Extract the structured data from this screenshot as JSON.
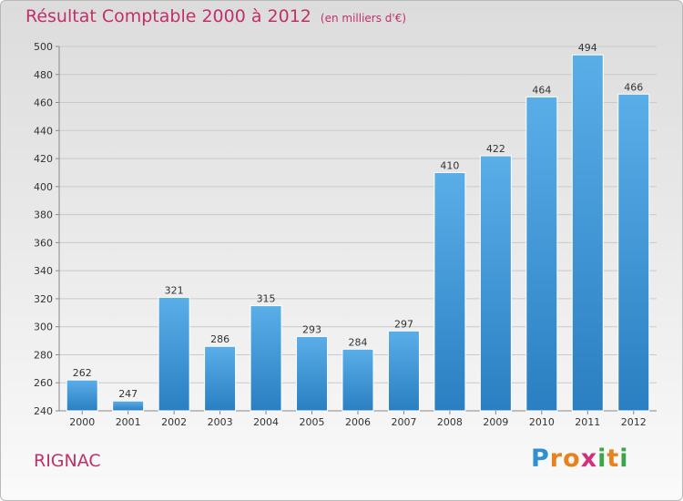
{
  "chart_data": {
    "type": "bar",
    "title": "Résultat Comptable 2000 à 2012",
    "subtitle": "(en milliers d'€)",
    "categories": [
      "2000",
      "2001",
      "2002",
      "2003",
      "2004",
      "2005",
      "2006",
      "2007",
      "2008",
      "2009",
      "2010",
      "2011",
      "2012"
    ],
    "values": [
      262,
      247,
      321,
      286,
      315,
      293,
      284,
      297,
      410,
      422,
      464,
      494,
      466
    ],
    "ylim": [
      240,
      500
    ],
    "yticks": [
      240,
      260,
      280,
      300,
      320,
      340,
      360,
      380,
      400,
      420,
      440,
      460,
      480,
      500
    ],
    "xlabel": "",
    "ylabel": "",
    "grid": true,
    "bar_color_top": "#5aaee8",
    "bar_color_bottom": "#2a7fc2"
  },
  "footer": {
    "commune": "RIGNAC",
    "logo_letters": [
      "P",
      "r",
      "o",
      "x",
      "i",
      "t",
      "i"
    ],
    "logo_colors": [
      "#2f8fd0",
      "#e8821e",
      "#e8821e",
      "#d42f7a",
      "#3aa64a",
      "#e8821e",
      "#3aa64a"
    ]
  },
  "colors": {
    "title": "#c0306a",
    "grid": "#c9c9c9",
    "axis_text": "#333333"
  }
}
